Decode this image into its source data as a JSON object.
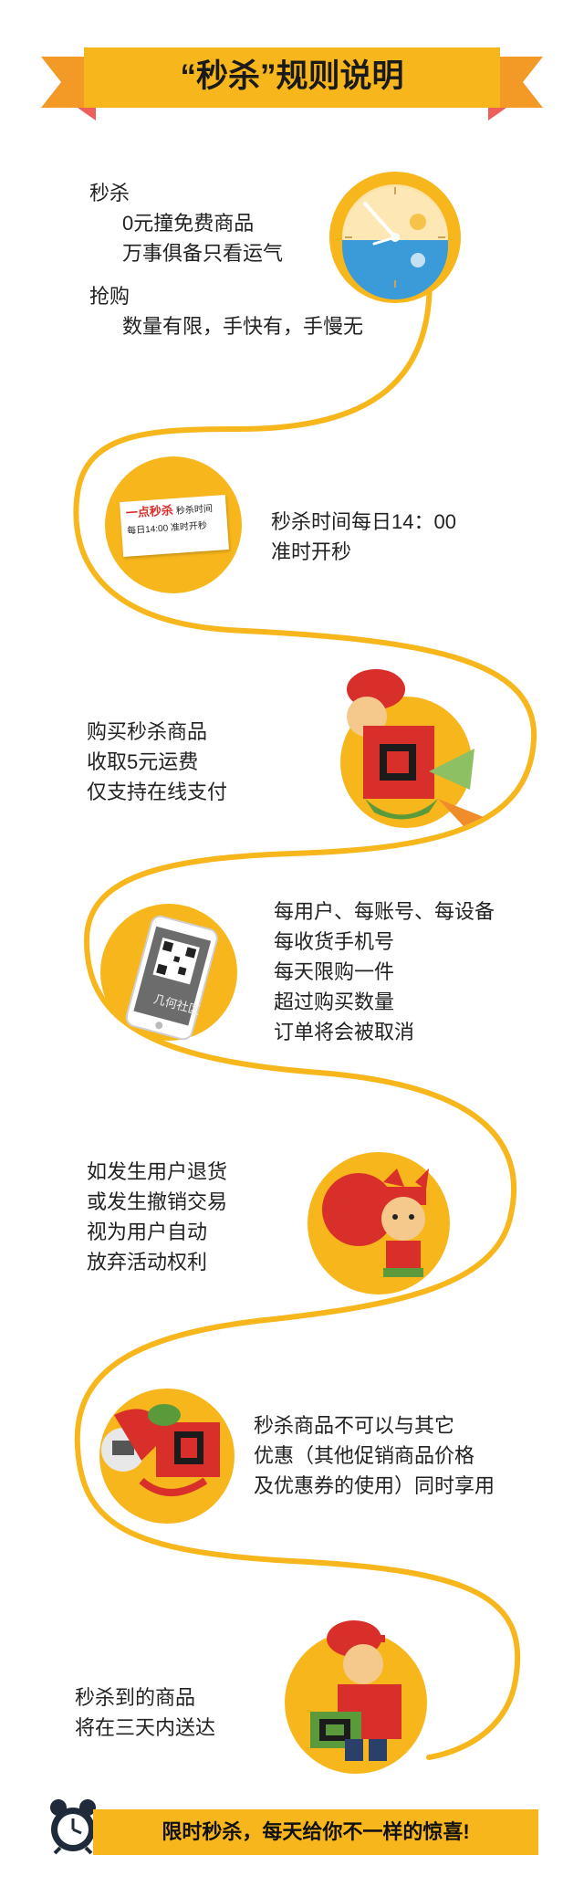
{
  "title": "“秒杀”规则说明",
  "sections": {
    "s1": {
      "heading1": "秒杀",
      "line1": "0元撞免费商品",
      "line2": "万事俱备只看运气",
      "heading2": "抢购",
      "line3": "数量有限，手快有，手慢无"
    },
    "s2": {
      "card_brand": "一点秒杀",
      "card_label": "秒杀时间",
      "card_time": "每日14:00 准时开秒",
      "line1": "秒杀时间每日14：00",
      "line2": "准时开秒"
    },
    "s3": {
      "line1": "购买秒杀商品",
      "line2": "收取5元运费",
      "line3": "仅支持在线支付"
    },
    "s4": {
      "phone_label": "几何社区",
      "line1": "每用户、每账号、每设备",
      "line2": "每收货手机号",
      "line3": "每天限购一件",
      "line4": "超过购买数量",
      "line5": "订单将会被取消"
    },
    "s5": {
      "line1": "如发生用户退货",
      "line2": "或发生撤销交易",
      "line3": "视为用户自动",
      "line4": "放弃活动权利"
    },
    "s6": {
      "line1": "秒杀商品不可以与其它",
      "line2": "优惠（其他促销商品价格",
      "line3": "及优惠券的使用）同时享用"
    },
    "s7": {
      "line1": "秒杀到的商品",
      "line2": "将在三天内送达"
    }
  },
  "footer": "限时秒杀，每天给你不一样的惊喜!",
  "colors": {
    "accent": "#f7b61b",
    "ribbon_side": "#f29a25",
    "ribbon_tip": "#ee5f5b",
    "mascot_red": "#d92f2a",
    "clock_blue": "#3a9bd8",
    "dark": "#1f2b3a"
  },
  "icons": [
    "clock-icon",
    "mascot-icon",
    "phone-qr-icon",
    "alarm-clock-icon"
  ]
}
